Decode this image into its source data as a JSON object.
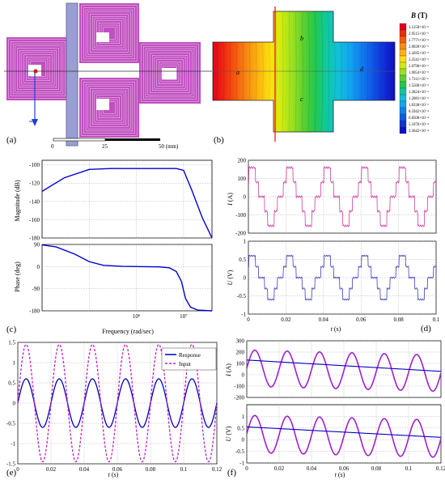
{
  "panel_labels": {
    "a": "(a)",
    "b": "(b)",
    "c": "(c)",
    "d": "(d)",
    "e": "(e)",
    "f": "(f)"
  },
  "panel_a": {
    "scale_labels": [
      "0",
      "25",
      "50 (mm)"
    ],
    "colors": {
      "coil": "#c050c0",
      "core": "#9a9ed0",
      "arrow": "#1f3fd0",
      "line": "#333333"
    }
  },
  "panel_b": {
    "region_labels": {
      "a": "a",
      "b": "b",
      "c": "c",
      "d": "d"
    },
    "legend_title_italic": "B",
    "legend_title_unit": " (T)",
    "legend_values": [
      "3.1250×10⁻³",
      "2.9515×10⁻³",
      "2.7771×10⁻³",
      "2.6028×10⁻³",
      "2.4285×10⁻³",
      "2.2541×10⁻³",
      "2.0798×10⁻³",
      "1.9054×10⁻³",
      "1.7311×10⁻³",
      "1.5568×10⁻³",
      "1.3824×10⁻³",
      "1.2081×10⁻³",
      "1.0338×10⁻³",
      "8.5942×10⁻⁴",
      "6.8508×10⁻⁴",
      "5.1076×10⁻⁴",
      "3.3642×10⁻⁴"
    ],
    "legend_colors": [
      "#e3001a",
      "#f02a10",
      "#f55a10",
      "#f88a10",
      "#fbb510",
      "#fde010",
      "#d0ec10",
      "#9be020",
      "#5cd030",
      "#22c850",
      "#10c8a0",
      "#10c0d8",
      "#10a8f0",
      "#1080f0",
      "#1058e8",
      "#1030d8",
      "#1010c0"
    ]
  },
  "chart_data": [
    {
      "panel": "c",
      "type": "line",
      "subplot": "magnitude",
      "xlabel": "Frequency (rad/sec)",
      "ylabel": "Magnitude (dB)",
      "xscale": "log",
      "xlim": [
        10000,
        40000000
      ],
      "ylim": [
        -180,
        -95
      ],
      "yticks": [
        -100,
        -120,
        -140,
        -160,
        -180
      ],
      "x": [
        10000,
        30000,
        100000,
        300000,
        1000000,
        3000000,
        7000000,
        10000000,
        15000000,
        25000000,
        40000000
      ],
      "y": [
        -129,
        -114,
        -105,
        -104,
        -104,
        -104,
        -104,
        -106,
        -128,
        -158,
        -180
      ],
      "color": "#0000d0",
      "grid": true
    },
    {
      "panel": "c",
      "type": "line",
      "subplot": "phase",
      "xlabel": "Frequency (rad/sec)",
      "ylabel": "Phase (deg)",
      "xscale": "log",
      "xlim": [
        10000,
        40000000
      ],
      "ylim": [
        -180,
        90
      ],
      "yticks": [
        90,
        0,
        -90,
        -180
      ],
      "xtick_labels": [
        "10⁶",
        "10⁷"
      ],
      "x": [
        10000,
        20000,
        50000,
        100000,
        200000,
        500000,
        1000000,
        3000000,
        5000000,
        7000000,
        9000000,
        11000000,
        14000000,
        20000000,
        40000000
      ],
      "y": [
        88,
        80,
        50,
        20,
        5,
        1,
        0,
        -1,
        -5,
        -20,
        -60,
        -130,
        -165,
        -177,
        -180
      ],
      "color": "#0000d0",
      "grid": true
    },
    {
      "panel": "d",
      "type": "line",
      "subplot": "current",
      "ylabel_italic": "I",
      "ylabel_unit": " (A)",
      "xlim": [
        0,
        0.1
      ],
      "ylim": [
        -200,
        200
      ],
      "yticks": [
        200,
        100,
        0,
        -100,
        -200
      ],
      "period": 0.02,
      "levels": [
        160,
        80,
        -80,
        -160
      ],
      "color": "#d040a0",
      "grid": true
    },
    {
      "panel": "d",
      "type": "line",
      "subplot": "voltage",
      "ylabel_italic": "U",
      "ylabel_unit": " (V)",
      "xlabel_italic": "t",
      "xlabel_unit": " (s)",
      "xlim": [
        0,
        0.1
      ],
      "ylim": [
        -1,
        1
      ],
      "yticks": [
        1,
        0.5,
        0,
        -0.5,
        -1
      ],
      "xticks": [
        0,
        0.02,
        0.04,
        0.06,
        0.08,
        0.1
      ],
      "period": 0.02,
      "levels": [
        0.6,
        0.3,
        -0.3,
        -0.6
      ],
      "color": "#4040c0",
      "grid": true
    },
    {
      "panel": "e",
      "type": "line",
      "xlabel_italic": "t",
      "xlabel_unit": " (s)",
      "xlim": [
        0,
        0.12
      ],
      "ylim": [
        -1.5,
        1.5
      ],
      "yticks": [
        1.5,
        1,
        0.5,
        0,
        -0.5,
        -1,
        -1.5
      ],
      "xticks": [
        0,
        0.02,
        0.04,
        0.06,
        0.08,
        0.1,
        0.12
      ],
      "period": 0.02,
      "series": [
        {
          "name": "Response",
          "amplitude": 0.6,
          "color": "#0000c0",
          "dash": "solid"
        },
        {
          "name": "Input",
          "amplitude": 1.45,
          "color": "#c020c0",
          "dash": "dashed"
        }
      ],
      "legend": "top-right",
      "grid": true
    },
    {
      "panel": "f",
      "type": "line",
      "subplot": "current",
      "ylabel_italic": "I",
      "ylabel_unit": " (A)",
      "xlim": [
        0,
        0.12
      ],
      "ylim": [
        -200,
        300
      ],
      "yticks": [
        300,
        200,
        100,
        0,
        -100,
        -200
      ],
      "period": 0.02,
      "osc_amplitude": 160,
      "decay_start": 130,
      "decay_end": 30,
      "colors": [
        "#a020d0",
        "#0000c0"
      ],
      "grid": true
    },
    {
      "panel": "f",
      "type": "line",
      "subplot": "voltage",
      "ylabel_italic": "U",
      "ylabel_unit": " (V)",
      "xlabel_italic": "t",
      "xlabel_unit": " (s)",
      "xlim": [
        0,
        0.12
      ],
      "ylim": [
        -1,
        1.5
      ],
      "yticks": [
        1,
        0.5,
        0,
        -0.5,
        -1
      ],
      "xticks": [
        0,
        0.02,
        0.04,
        0.06,
        0.08,
        0.1,
        0.12
      ],
      "period": 0.02,
      "osc_amplitude": 0.8,
      "decay_start": 0.55,
      "decay_end": 0.1,
      "colors": [
        "#a020d0",
        "#0000c0"
      ],
      "grid": true
    }
  ]
}
